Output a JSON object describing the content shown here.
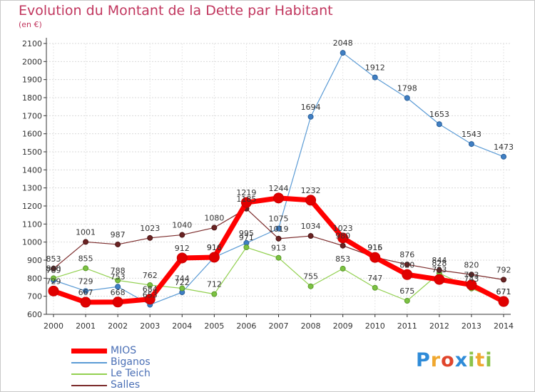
{
  "chart_data": {
    "type": "line",
    "title": "Evolution du Montant de la Dette par Habitant",
    "subtitle": "(en €)",
    "x": [
      "2000",
      "2001",
      "2002",
      "2003",
      "2004",
      "2005",
      "2006",
      "2007",
      "2008",
      "2009",
      "2010",
      "2011",
      "2012",
      "2013",
      "2014"
    ],
    "ylim": [
      600,
      2100
    ],
    "yticks": [
      600,
      700,
      800,
      900,
      1000,
      1100,
      1200,
      1300,
      1400,
      1500,
      1600,
      1700,
      1800,
      1900,
      2000,
      2100
    ],
    "grid": true,
    "legend_position": "bottom-left",
    "series": [
      {
        "name": "MIOS",
        "color": "#ff0000",
        "values": [
          729,
          667,
          668,
          684,
          912,
          916,
          1219,
          1244,
          1232,
          1023,
          915,
          820,
          793,
          763,
          671
        ],
        "labels": [
          "729",
          "667",
          "668",
          "684",
          "912",
          "916",
          "1219",
          "1244",
          "1232",
          "1023",
          "915",
          "820",
          "793",
          "763",
          "671"
        ]
      },
      {
        "name": "Biganos",
        "color": "#5b9bd5",
        "values": [
          789,
          729,
          753,
          653,
          722,
          916,
          995,
          1075,
          1694,
          2048,
          1912,
          1798,
          1653,
          1543,
          1473
        ],
        "labels": [
          "789",
          "729",
          "753",
          "653",
          "722",
          "916",
          "995",
          "1075",
          "1694",
          "2048",
          "1912",
          "1798",
          "1653",
          "1543",
          "1473"
        ]
      },
      {
        "name": "Le Teich",
        "color": "#92d050",
        "values": [
          800,
          855,
          788,
          762,
          744,
          712,
          971,
          913,
          755,
          853,
          747,
          675,
          828,
          743,
          671
        ],
        "labels": [
          "800",
          "855",
          "788",
          "762",
          "744",
          "712",
          "971",
          "913",
          "755",
          "853",
          "747",
          "675",
          "828",
          "743",
          "671"
        ]
      },
      {
        "name": "Salles",
        "color": "#7b2b2b",
        "values": [
          853,
          1001,
          987,
          1023,
          1040,
          1080,
          1185,
          1019,
          1034,
          980,
          916,
          876,
          844,
          820,
          792
        ],
        "labels": [
          "853",
          "1001",
          "987",
          "1023",
          "1040",
          "1080",
          "1185",
          "1019",
          "1034",
          "980",
          "916",
          "876",
          "844",
          "820",
          "792"
        ]
      }
    ]
  },
  "legend": {
    "items": [
      "MIOS",
      "Biganos",
      "Le Teich",
      "Salles"
    ]
  },
  "logo": {
    "letters": [
      "P",
      "r",
      "o",
      "x",
      "i",
      "t",
      "i"
    ],
    "colors": [
      "#2e8bd8",
      "#f0a830",
      "#e0452c",
      "#2e8bd8",
      "#8bc34a",
      "#f0a830",
      "#8bc34a"
    ]
  }
}
